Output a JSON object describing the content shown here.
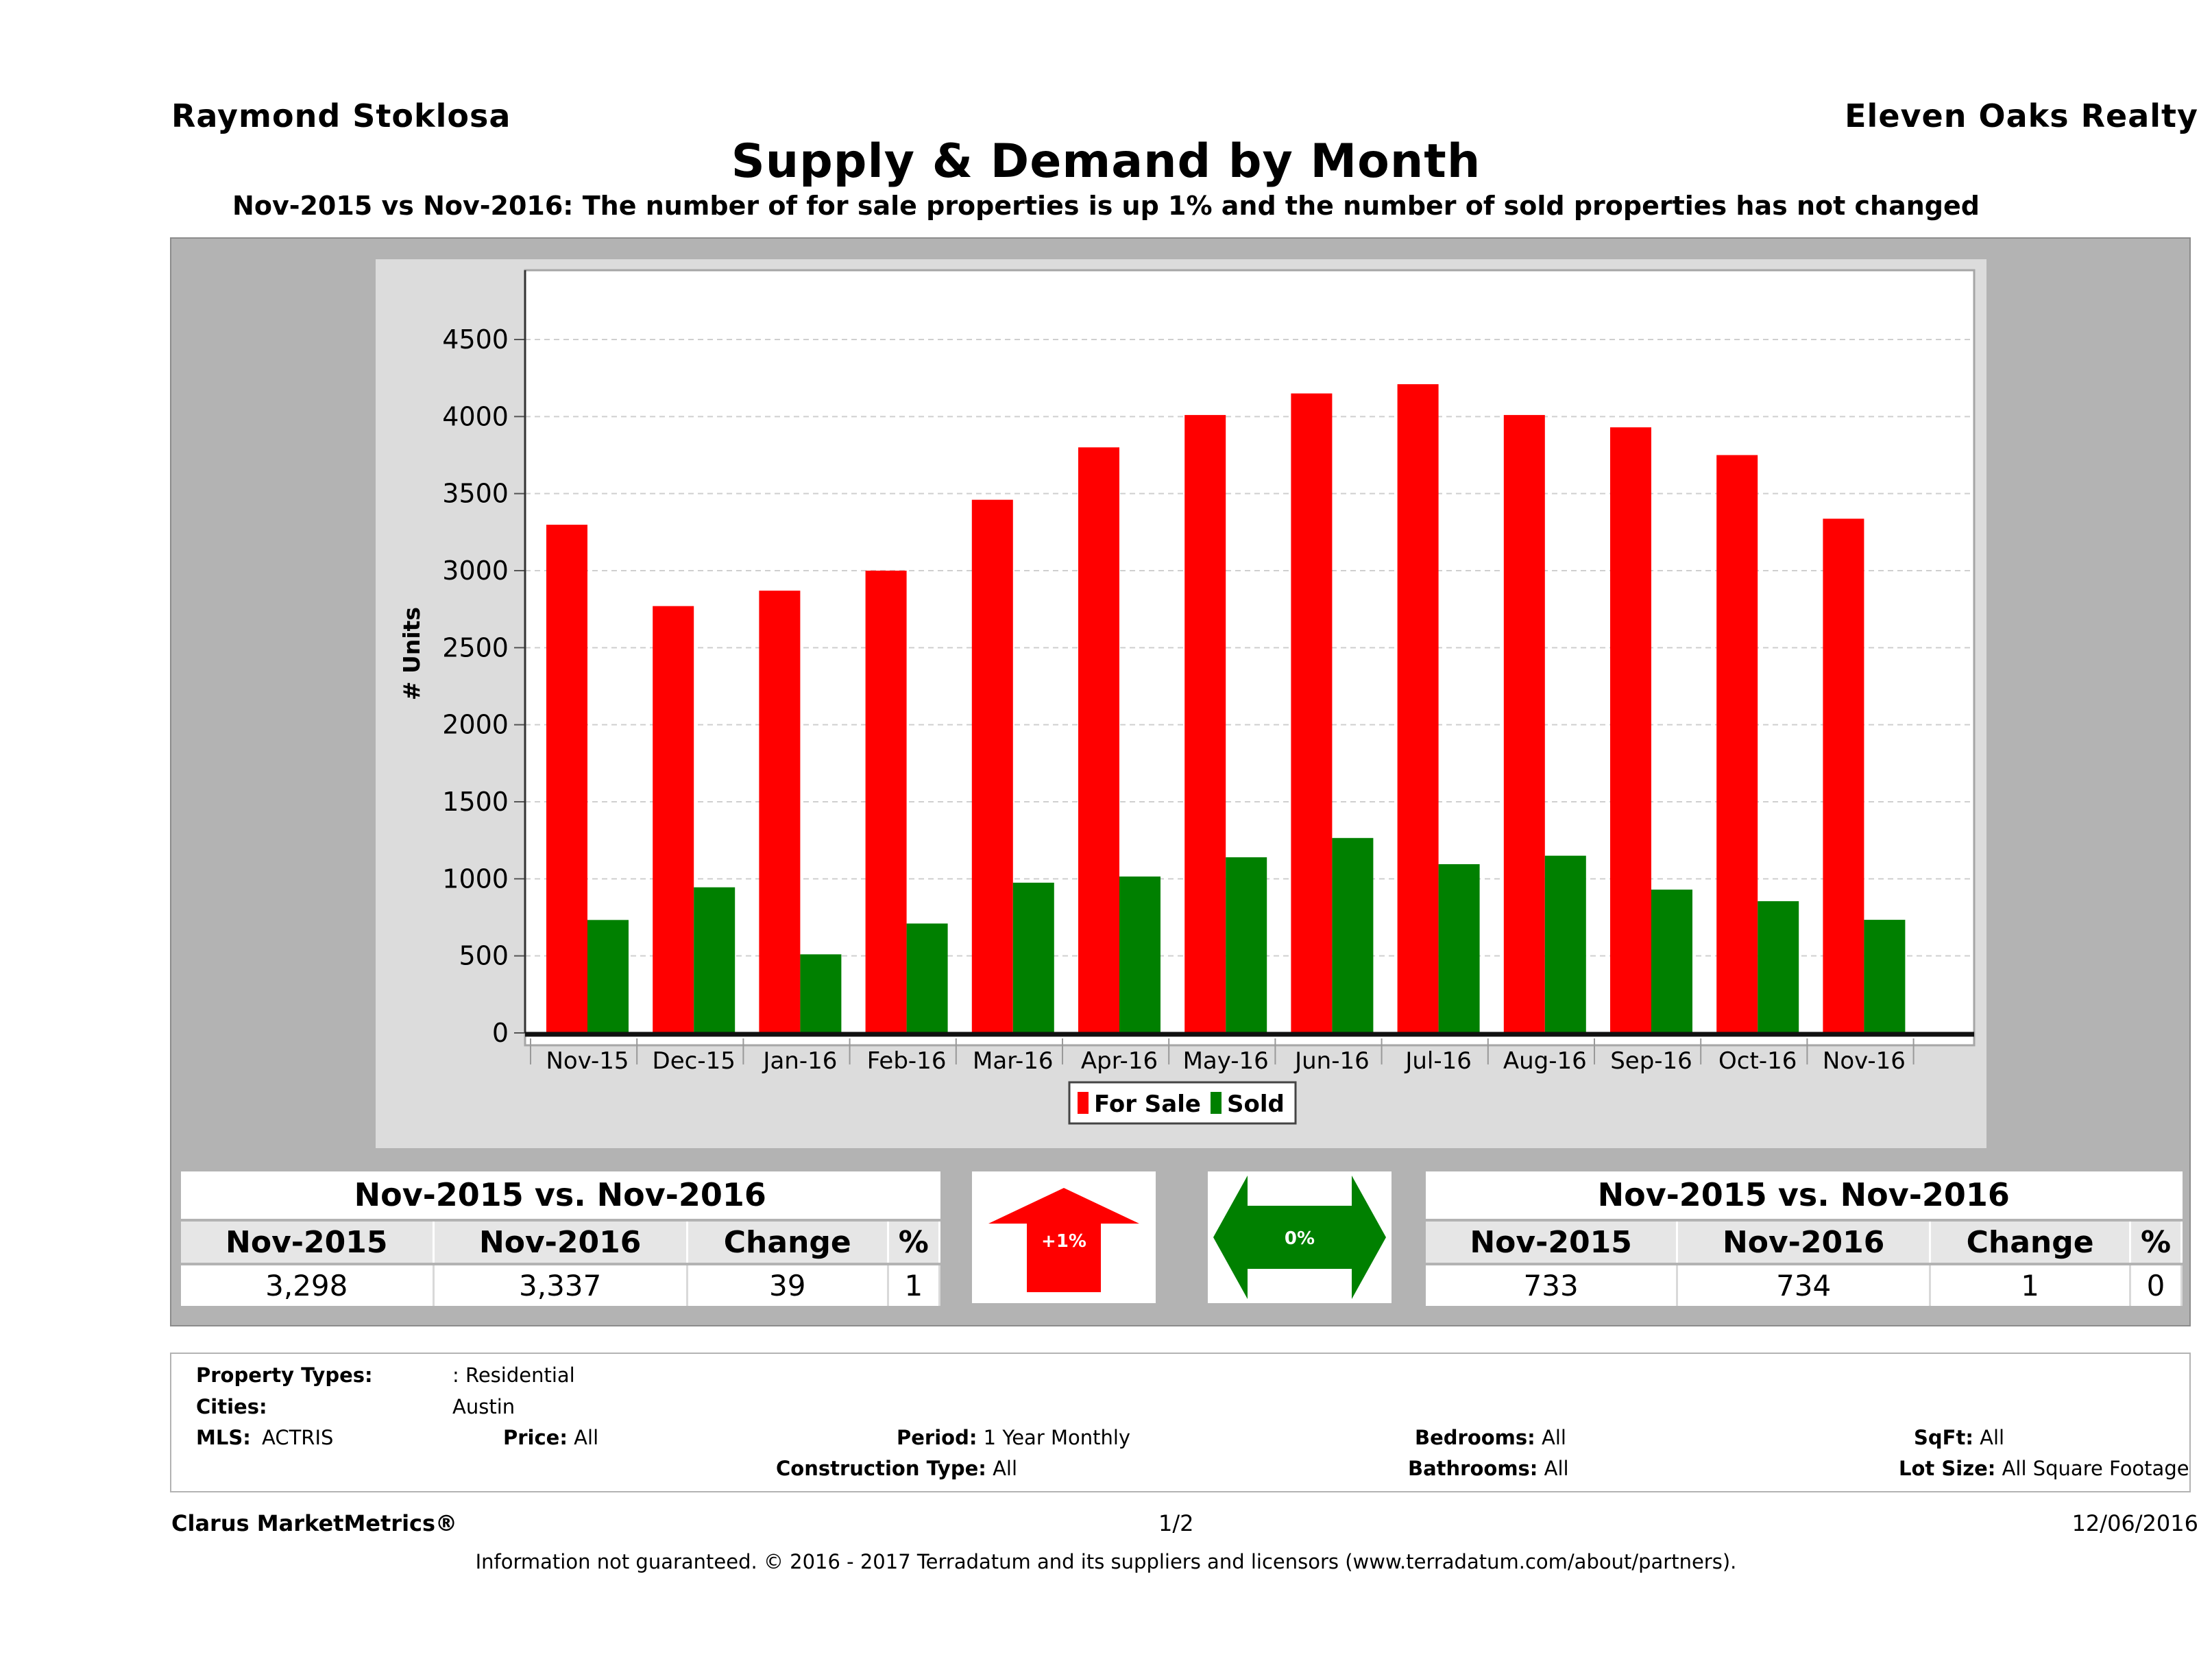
{
  "header": {
    "agent_name": "Raymond Stoklosa",
    "company": "Eleven Oaks Realty"
  },
  "chart_data": {
    "type": "bar",
    "title": "Supply & Demand by Month",
    "subtitle": "Nov-2015 vs Nov-2016: The number of for sale properties is up 1% and the number of sold properties has not changed",
    "ylabel": "# Units",
    "xlabel": "",
    "ylim": [
      0,
      5000
    ],
    "yticks": [
      0,
      500,
      1000,
      1500,
      2000,
      2500,
      3000,
      3500,
      4000,
      4500
    ],
    "grid": true,
    "legend_position": "bottom",
    "categories": [
      "Nov-15",
      "Dec-15",
      "Jan-16",
      "Feb-16",
      "Mar-16",
      "Apr-16",
      "May-16",
      "Jun-16",
      "Jul-16",
      "Aug-16",
      "Sep-16",
      "Oct-16",
      "Nov-16"
    ],
    "series": [
      {
        "name": "For Sale",
        "color": "#ff0000",
        "values": [
          3298,
          2770,
          2870,
          3000,
          3460,
          3800,
          4010,
          4150,
          4210,
          4010,
          3930,
          3750,
          3337
        ]
      },
      {
        "name": "Sold",
        "color": "#008000",
        "values": [
          733,
          945,
          510,
          710,
          975,
          1015,
          1140,
          1265,
          1095,
          1150,
          930,
          855,
          734
        ]
      }
    ]
  },
  "for_sale_stats": {
    "title": "Nov-2015 vs. Nov-2016",
    "headers": [
      "Nov-2015",
      "Nov-2016",
      "Change",
      "%"
    ],
    "values": [
      "3,298",
      "3,337",
      "39",
      "1"
    ],
    "indicator": "+1%",
    "indicator_color": "#ff0000",
    "indicator_icon": "up-arrow-icon"
  },
  "sold_stats": {
    "title": "Nov-2015 vs. Nov-2016",
    "headers": [
      "Nov-2015",
      "Nov-2016",
      "Change",
      "%"
    ],
    "values": [
      "733",
      "734",
      "1",
      "0"
    ],
    "indicator": "0%",
    "indicator_color": "#008000",
    "indicator_icon": "double-arrow-icon"
  },
  "criteria": {
    "property_types_label": "Property Types:",
    "property_types_value": ": Residential",
    "cities_label": "Cities:",
    "cities_value": "Austin",
    "mls_label": "MLS:",
    "mls_value": "ACTRIS",
    "price_label": "Price:",
    "price_value": "All",
    "period_label": "Period:",
    "period_value": "1 Year Monthly",
    "construction_label": "Construction Type:",
    "construction_value": "All",
    "bedrooms_label": "Bedrooms:",
    "bedrooms_value": "All",
    "bathrooms_label": "Bathrooms:",
    "bathrooms_value": "All",
    "sqft_label": "SqFt:",
    "sqft_value": "All",
    "lot_label": "Lot Size:",
    "lot_value": "All Square Footage"
  },
  "footer": {
    "brand": "Clarus MarketMetrics®",
    "page": "1/2",
    "date": "12/06/2016",
    "disclaimer": "Information not guaranteed. © 2016 - 2017 Terradatum and its suppliers and licensors (www.terradatum.com/about/partners)."
  }
}
